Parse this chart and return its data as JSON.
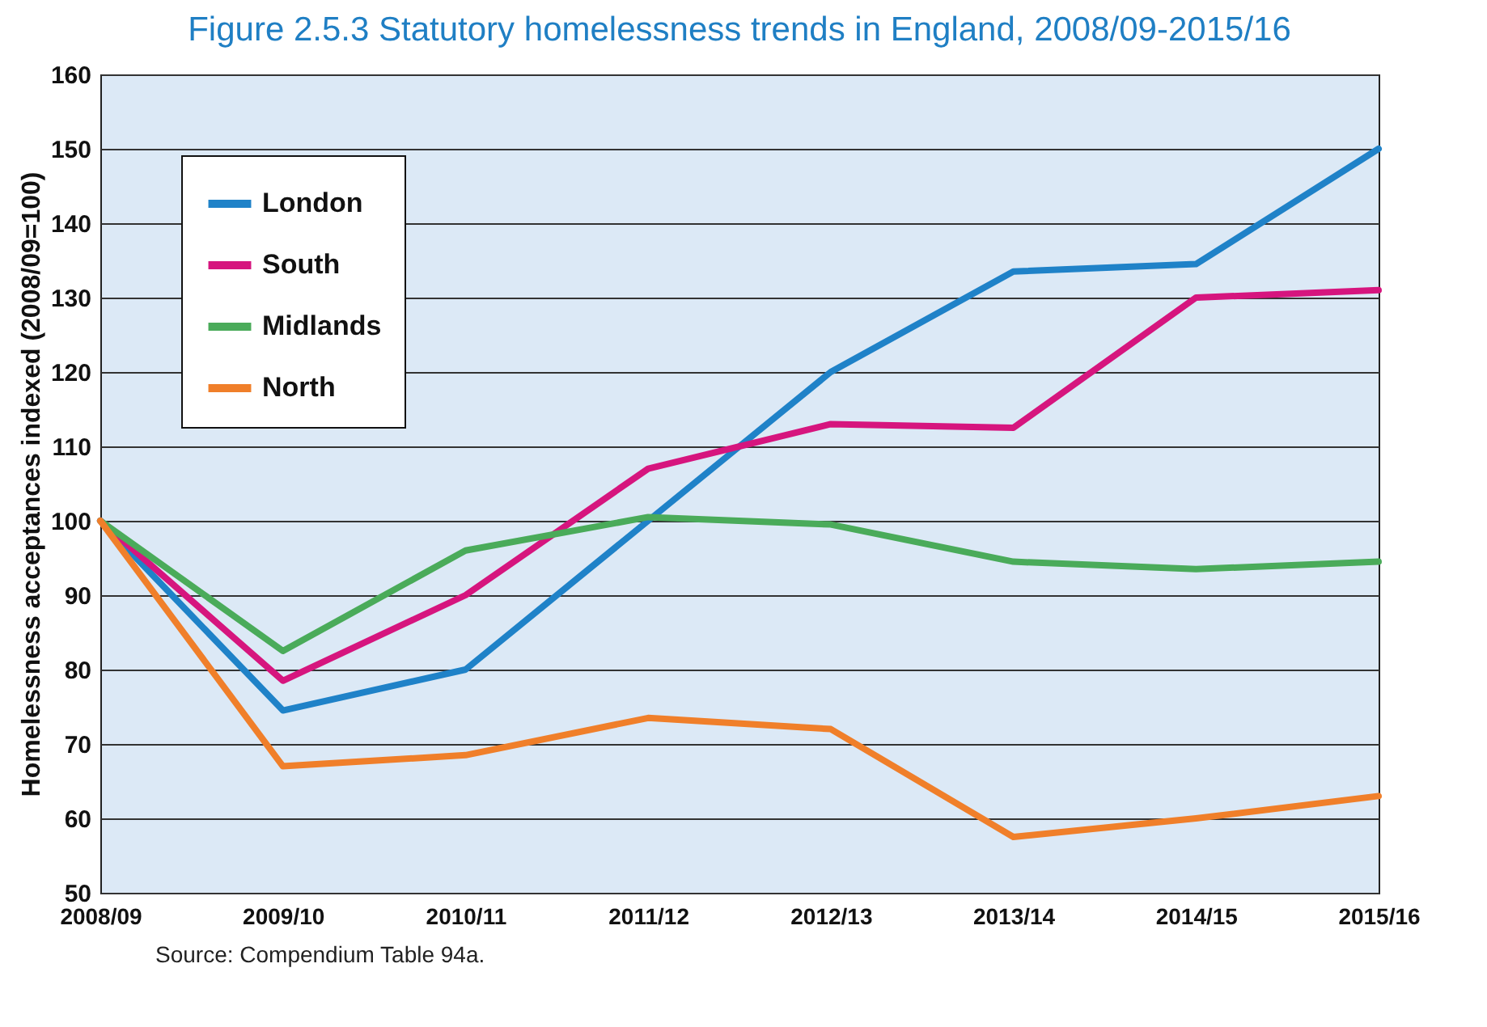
{
  "chart_data": {
    "type": "line",
    "title": "Figure 2.5.3 Statutory homelessness trends in England, 2008/09-2015/16",
    "ylabel": "Homelessness acceptances indexed (2008/09=100)",
    "annotations": [
      "Source: Compendium Table 94a."
    ],
    "categories": [
      "2008/09",
      "2009/10",
      "2010/11",
      "2011/12",
      "2012/13",
      "2013/14",
      "2014/15",
      "2015/16"
    ],
    "series": [
      {
        "name": "London",
        "color": "#1f82c8",
        "values": [
          100,
          74.5,
          80,
          100,
          120,
          133.5,
          134.5,
          150
        ]
      },
      {
        "name": "South",
        "color": "#d6157e",
        "values": [
          100,
          78.5,
          90,
          107,
          113,
          112.5,
          130,
          131
        ]
      },
      {
        "name": "Midlands",
        "color": "#4aab5a",
        "values": [
          100,
          82.5,
          96,
          100.5,
          99.5,
          94.5,
          93.5,
          94.5
        ]
      },
      {
        "name": "North",
        "color": "#f07f2a",
        "values": [
          100,
          67,
          68.5,
          73.5,
          72,
          57.5,
          60,
          63
        ]
      }
    ],
    "ylim": [
      50,
      160
    ],
    "yticks": [
      50,
      60,
      70,
      80,
      90,
      100,
      110,
      120,
      130,
      140,
      150,
      160
    ],
    "grid": "y",
    "legend": "top left",
    "marker": "none",
    "line_style": "solid"
  }
}
